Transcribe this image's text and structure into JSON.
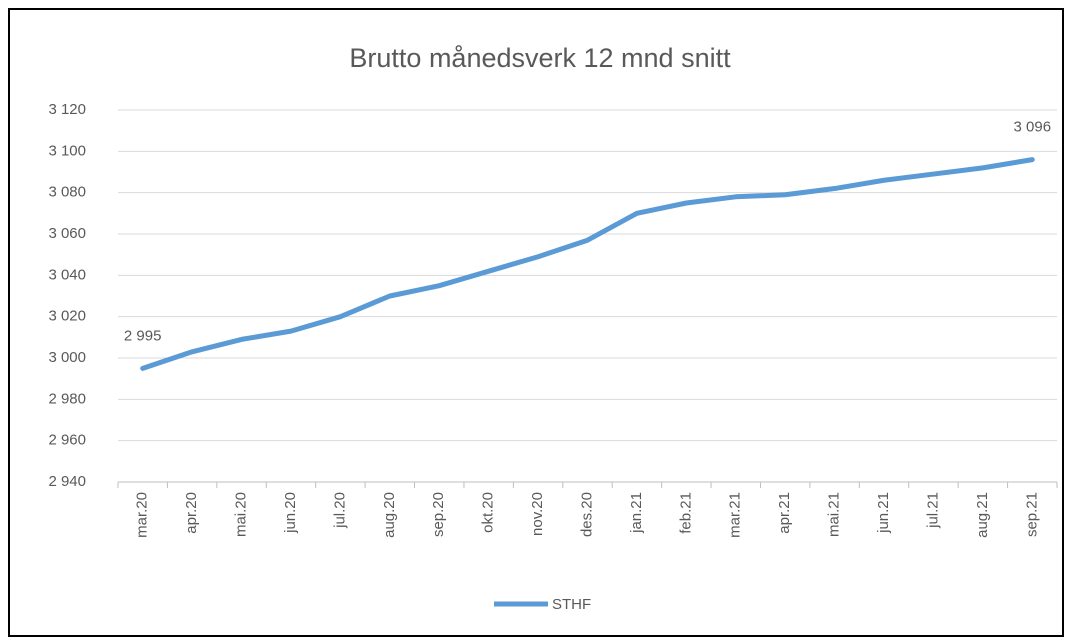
{
  "chart_data": {
    "type": "line",
    "title": "Brutto månedsverk 12 mnd snitt",
    "categories": [
      "mar.20",
      "apr.20",
      "mai.20",
      "jun.20",
      "jul.20",
      "aug.20",
      "sep.20",
      "okt.20",
      "nov.20",
      "des.20",
      "jan.21",
      "feb.21",
      "mar.21",
      "apr.21",
      "mai.21",
      "jun.21",
      "jul.21",
      "aug.21",
      "sep.21"
    ],
    "series": [
      {
        "name": "STHF",
        "color": "#5b9bd5",
        "values": [
          2995,
          3003,
          3009,
          3013,
          3020,
          3030,
          3035,
          3042,
          3049,
          3057,
          3070,
          3075,
          3078,
          3079,
          3082,
          3086,
          3089,
          3092,
          3096
        ],
        "value_labels": [
          "2 995",
          null,
          null,
          null,
          null,
          null,
          null,
          null,
          null,
          null,
          null,
          null,
          null,
          null,
          null,
          null,
          null,
          null,
          "3 096"
        ]
      }
    ],
    "ylim": [
      2940,
      3120
    ],
    "yticks": [
      {
        "value": 2940,
        "label": "2 940"
      },
      {
        "value": 2960,
        "label": "2 960"
      },
      {
        "value": 2980,
        "label": "2 980"
      },
      {
        "value": 3000,
        "label": "3 000"
      },
      {
        "value": 3020,
        "label": "3 020"
      },
      {
        "value": 3040,
        "label": "3 040"
      },
      {
        "value": 3060,
        "label": "3 060"
      },
      {
        "value": 3080,
        "label": "3 080"
      },
      {
        "value": 3100,
        "label": "3 100"
      },
      {
        "value": 3120,
        "label": "3 120"
      }
    ],
    "grid": true,
    "legend": "bottom"
  }
}
